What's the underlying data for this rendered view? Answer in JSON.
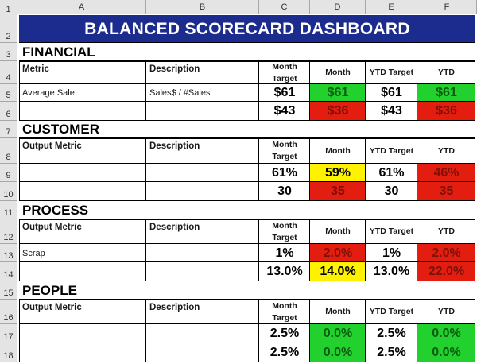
{
  "columns": [
    "A",
    "B",
    "C",
    "D",
    "E",
    "F"
  ],
  "rows": [
    "1",
    "2",
    "3",
    "4",
    "5",
    "6",
    "7",
    "8",
    "9",
    "10",
    "11",
    "12",
    "13",
    "14",
    "15",
    "16",
    "17",
    "18"
  ],
  "title": "BALANCED SCORECARD DASHBOARD",
  "colors": {
    "title_bg": "#1c2c8e",
    "good": "#22d12e",
    "bad": "#e31d10",
    "warn": "#fff200"
  },
  "sections": [
    {
      "name": "FINANCIAL",
      "header": {
        "metric": "Metric",
        "description": "Description",
        "month_target": "Month Target",
        "month": "Month",
        "ytd_target": "YTD Target",
        "ytd": "YTD"
      },
      "rows": [
        {
          "metric": "Average Sale",
          "description": "Sales$ / #Sales",
          "month_target": "$61",
          "month": "$61",
          "month_status": "good",
          "ytd_target": "$61",
          "ytd": "$61",
          "ytd_status": "good"
        },
        {
          "metric": "",
          "description": "",
          "month_target": "$43",
          "month": "$36",
          "month_status": "bad",
          "ytd_target": "$43",
          "ytd": "$36",
          "ytd_status": "bad"
        }
      ]
    },
    {
      "name": "CUSTOMER",
      "header": {
        "metric": "Output Metric",
        "description": "Description",
        "month_target": "Month Target",
        "month": "Month",
        "ytd_target": "YTD Target",
        "ytd": "YTD"
      },
      "rows": [
        {
          "metric": "",
          "description": "",
          "month_target": "61%",
          "month": "59%",
          "month_status": "warn",
          "ytd_target": "61%",
          "ytd": "46%",
          "ytd_status": "bad"
        },
        {
          "metric": "",
          "description": "",
          "month_target": "30",
          "month": "35",
          "month_status": "bad",
          "ytd_target": "30",
          "ytd": "35",
          "ytd_status": "bad"
        }
      ]
    },
    {
      "name": "PROCESS",
      "header": {
        "metric": "Output Metric",
        "description": "Description",
        "month_target": "Month Target",
        "month": "Month",
        "ytd_target": "YTD Target",
        "ytd": "YTD"
      },
      "rows": [
        {
          "metric": "Scrap",
          "description": "",
          "month_target": "1%",
          "month": "2.0%",
          "month_status": "bad",
          "ytd_target": "1%",
          "ytd": "2.0%",
          "ytd_status": "bad"
        },
        {
          "metric": "",
          "description": "",
          "month_target": "13.0%",
          "month": "14.0%",
          "month_status": "warn",
          "ytd_target": "13.0%",
          "ytd": "22.0%",
          "ytd_status": "bad"
        }
      ]
    },
    {
      "name": "PEOPLE",
      "header": {
        "metric": "Output Metric",
        "description": "Description",
        "month_target": "Month Target",
        "month": "Month",
        "ytd_target": "YTD Target",
        "ytd": "YTD"
      },
      "rows": [
        {
          "metric": "",
          "description": "",
          "month_target": "2.5%",
          "month": "0.0%",
          "month_status": "good",
          "ytd_target": "2.5%",
          "ytd": "0.0%",
          "ytd_status": "good"
        },
        {
          "metric": "",
          "description": "",
          "month_target": "2.5%",
          "month": "0.0%",
          "month_status": "good",
          "ytd_target": "2.5%",
          "ytd": "0.0%",
          "ytd_status": "good"
        }
      ]
    }
  ]
}
